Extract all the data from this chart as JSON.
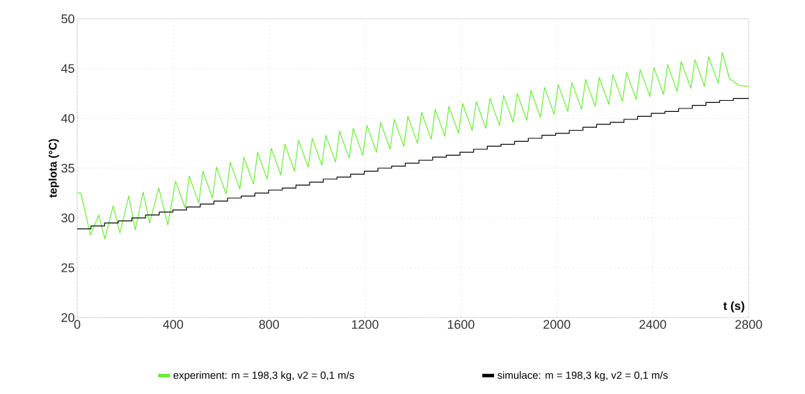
{
  "chart_data": {
    "type": "line",
    "xlabel": "t  (s)",
    "ylabel": "teplota  (°C)",
    "xlim": [
      0,
      2800
    ],
    "ylim": [
      20,
      50
    ],
    "xticks": [
      0,
      400,
      800,
      1200,
      1600,
      2000,
      2400,
      2800
    ],
    "yticks": [
      20,
      25,
      30,
      35,
      40,
      45,
      50
    ],
    "grid": true,
    "legend": "bottom",
    "marker": "none",
    "line_style": "solid",
    "series": [
      {
        "name": "experiment: m = 198,3 kg, v2 = 0,1 m/s",
        "color": "#66ee33",
        "x": [
          0,
          15,
          55,
          90,
          115,
          150,
          178,
          215,
          242,
          275,
          302,
          340,
          378,
          410,
          450,
          467,
          507,
          524,
          564,
          581,
          621,
          638,
          678,
          695,
          735,
          752,
          792,
          809,
          849,
          866,
          906,
          923,
          963,
          980,
          1020,
          1037,
          1077,
          1094,
          1134,
          1151,
          1191,
          1208,
          1248,
          1265,
          1305,
          1322,
          1362,
          1379,
          1419,
          1436,
          1476,
          1493,
          1533,
          1550,
          1590,
          1607,
          1647,
          1664,
          1704,
          1721,
          1761,
          1778,
          1818,
          1835,
          1875,
          1892,
          1932,
          1949,
          1989,
          2006,
          2046,
          2063,
          2103,
          2120,
          2160,
          2177,
          2217,
          2234,
          2274,
          2291,
          2331,
          2348,
          2388,
          2405,
          2445,
          2462,
          2502,
          2519,
          2559,
          2576,
          2616,
          2633,
          2673,
          2690,
          2720,
          2760,
          2800
        ],
        "values": [
          32.5,
          32.5,
          28.3,
          30.3,
          27.9,
          31.2,
          28.5,
          32.2,
          28.8,
          32.6,
          29.5,
          33.0,
          29.3,
          33.7,
          31.0,
          34.2,
          31.5,
          34.7,
          32.0,
          35.1,
          32.4,
          35.6,
          32.9,
          36.1,
          33.4,
          36.6,
          33.9,
          37.0,
          34.3,
          37.4,
          34.7,
          37.8,
          35.1,
          38.0,
          35.3,
          38.3,
          35.6,
          38.7,
          36.0,
          39.0,
          36.3,
          39.3,
          36.6,
          39.6,
          36.9,
          39.9,
          37.2,
          40.2,
          37.5,
          40.6,
          37.9,
          40.9,
          38.2,
          41.2,
          38.5,
          41.5,
          38.8,
          41.7,
          39.0,
          42.0,
          39.3,
          42.3,
          39.6,
          42.5,
          39.8,
          42.8,
          40.1,
          43.1,
          40.4,
          43.4,
          40.7,
          43.6,
          40.9,
          43.9,
          41.2,
          44.1,
          41.4,
          44.4,
          41.7,
          44.6,
          41.9,
          44.9,
          42.2,
          45.1,
          42.4,
          45.4,
          42.7,
          45.7,
          43.0,
          45.9,
          43.2,
          46.2,
          43.5,
          46.6,
          44.0,
          43.3,
          43.2
        ]
      },
      {
        "name": "simulace: m = 198,3 kg, v2 = 0,1 m/s",
        "color": "#000000",
        "type": "step",
        "x": [
          0,
          57,
          114,
          171,
          228,
          285,
          342,
          399,
          456,
          513,
          570,
          627,
          684,
          741,
          798,
          855,
          912,
          969,
          1026,
          1083,
          1140,
          1197,
          1254,
          1311,
          1368,
          1425,
          1482,
          1539,
          1596,
          1653,
          1710,
          1767,
          1824,
          1881,
          1938,
          1995,
          2052,
          2109,
          2166,
          2223,
          2280,
          2337,
          2394,
          2451,
          2508,
          2565,
          2622,
          2679,
          2736,
          2800
        ],
        "values": [
          28.9,
          29.2,
          29.5,
          29.7,
          30.0,
          30.3,
          30.6,
          30.8,
          31.1,
          31.4,
          31.7,
          32.0,
          32.2,
          32.5,
          32.8,
          33.0,
          33.3,
          33.6,
          33.9,
          34.1,
          34.4,
          34.7,
          35.0,
          35.2,
          35.5,
          35.8,
          36.1,
          36.3,
          36.6,
          36.9,
          37.2,
          37.4,
          37.7,
          38.0,
          38.3,
          38.5,
          38.8,
          39.1,
          39.4,
          39.6,
          39.9,
          40.2,
          40.5,
          40.7,
          41.0,
          41.3,
          41.6,
          41.8,
          42.0,
          42.1
        ]
      }
    ]
  }
}
